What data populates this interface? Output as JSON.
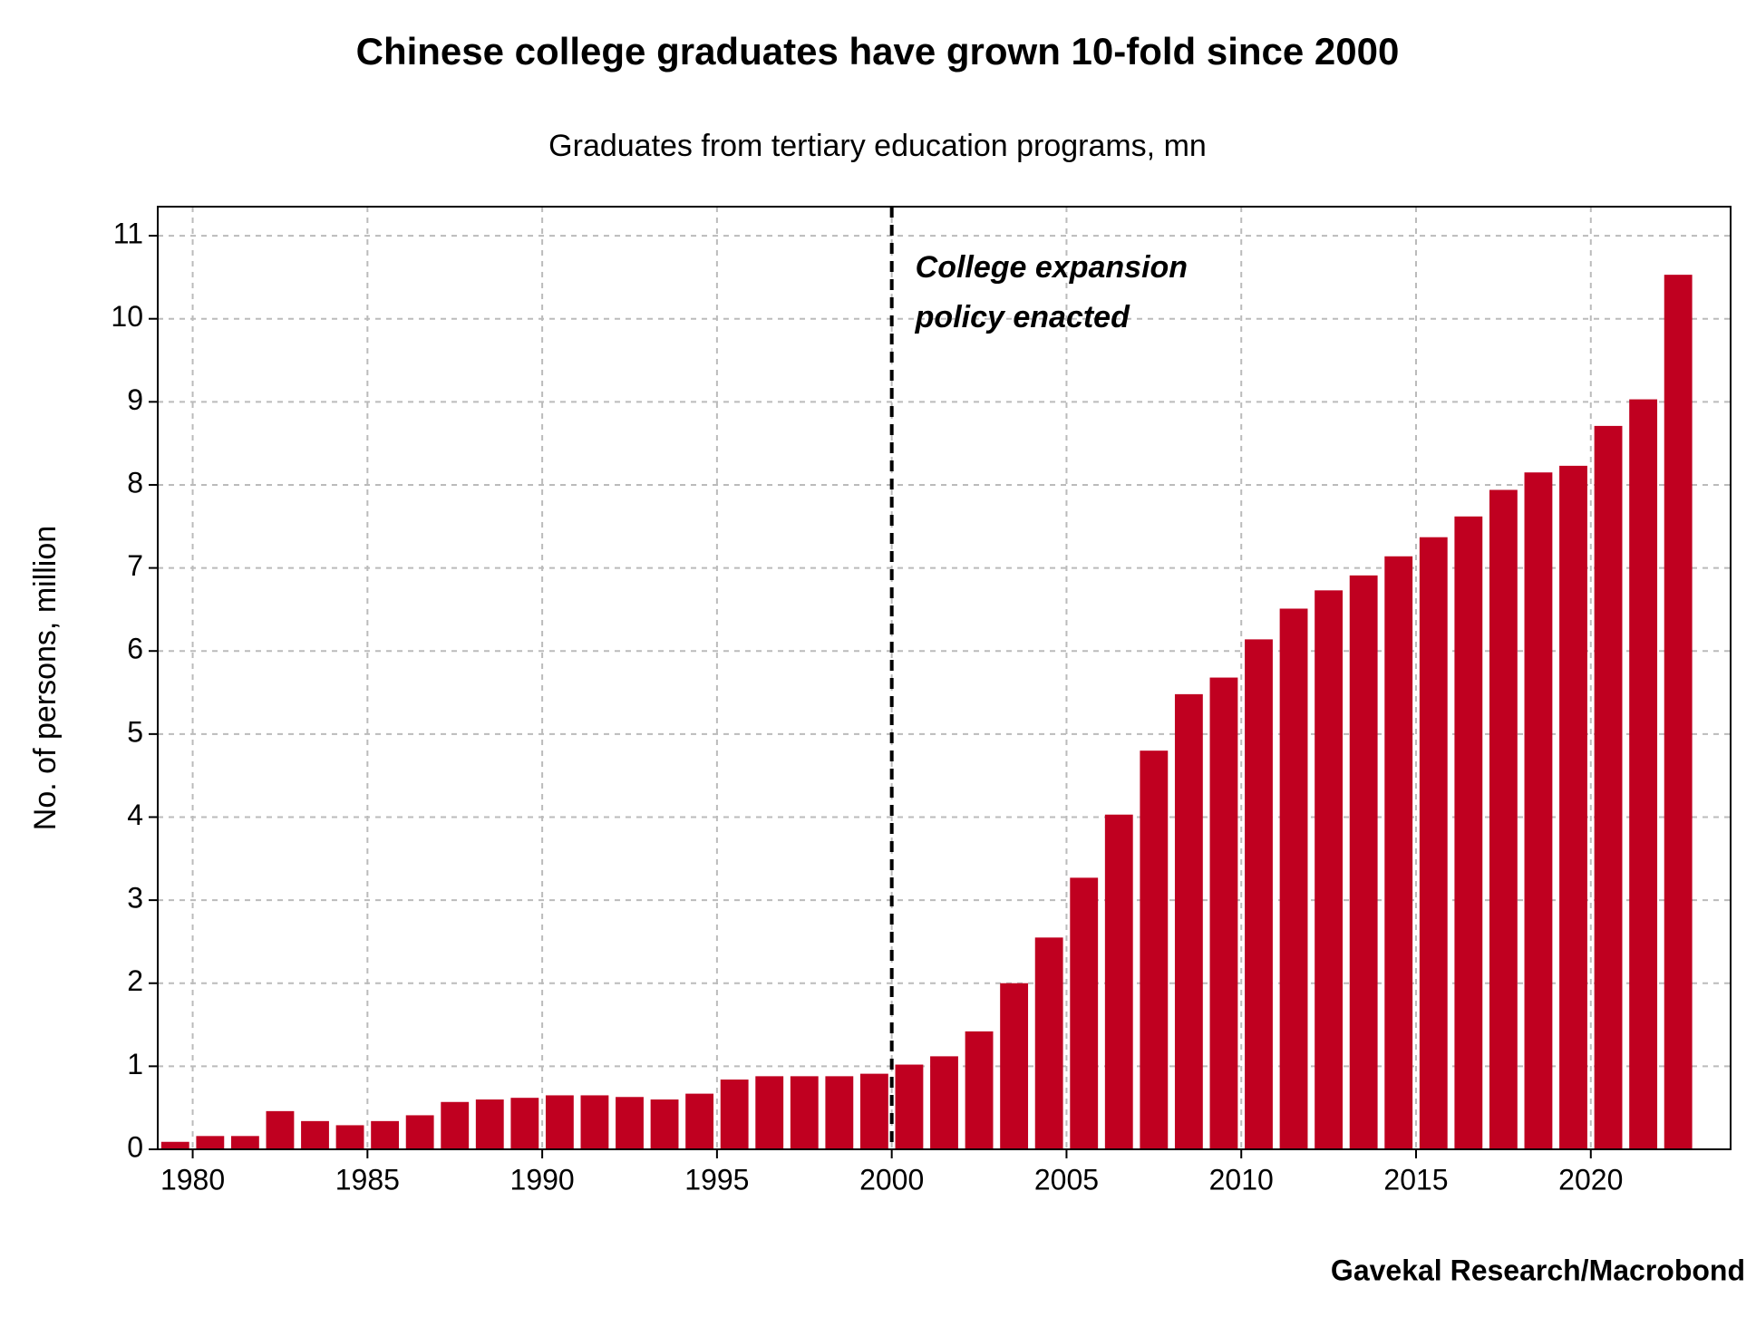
{
  "chart_data": {
    "type": "bar",
    "title": "Chinese college graduates have grown 10-fold since 2000",
    "subtitle": "Graduates from tertiary education programs, mn",
    "y_label": "No. of persons, million",
    "source": "Gavekal Research/Macrobond",
    "annotation": {
      "x": 2000,
      "lines": [
        "College expansion",
        "policy enacted"
      ]
    },
    "x": [
      1980,
      1981,
      1982,
      1983,
      1984,
      1985,
      1986,
      1987,
      1988,
      1989,
      1990,
      1991,
      1992,
      1993,
      1994,
      1995,
      1996,
      1997,
      1998,
      1999,
      2000,
      2001,
      2002,
      2003,
      2004,
      2005,
      2006,
      2007,
      2008,
      2009,
      2010,
      2011,
      2012,
      2013,
      2014,
      2015,
      2016,
      2017,
      2018,
      2019,
      2020,
      2021,
      2022,
      2023
    ],
    "values": [
      0.09,
      0.16,
      0.16,
      0.46,
      0.34,
      0.29,
      0.34,
      0.41,
      0.57,
      0.6,
      0.62,
      0.65,
      0.65,
      0.63,
      0.6,
      0.67,
      0.84,
      0.88,
      0.88,
      0.88,
      0.91,
      1.02,
      1.12,
      1.42,
      2.0,
      2.55,
      3.27,
      4.03,
      4.8,
      5.48,
      5.68,
      6.14,
      6.51,
      6.73,
      6.91,
      7.14,
      7.37,
      7.62,
      7.94,
      8.15,
      8.23,
      8.71,
      9.03,
      10.53
    ],
    "color": "#c00020",
    "xlim": [
      1979,
      2024
    ],
    "xticks": [
      1980,
      1985,
      1990,
      1995,
      2000,
      2005,
      2010,
      2015,
      2020
    ],
    "ylim": [
      0,
      11.35
    ],
    "yticks": [
      0,
      1,
      2,
      3,
      4,
      5,
      6,
      7,
      8,
      9,
      10,
      11
    ],
    "grid": true
  }
}
